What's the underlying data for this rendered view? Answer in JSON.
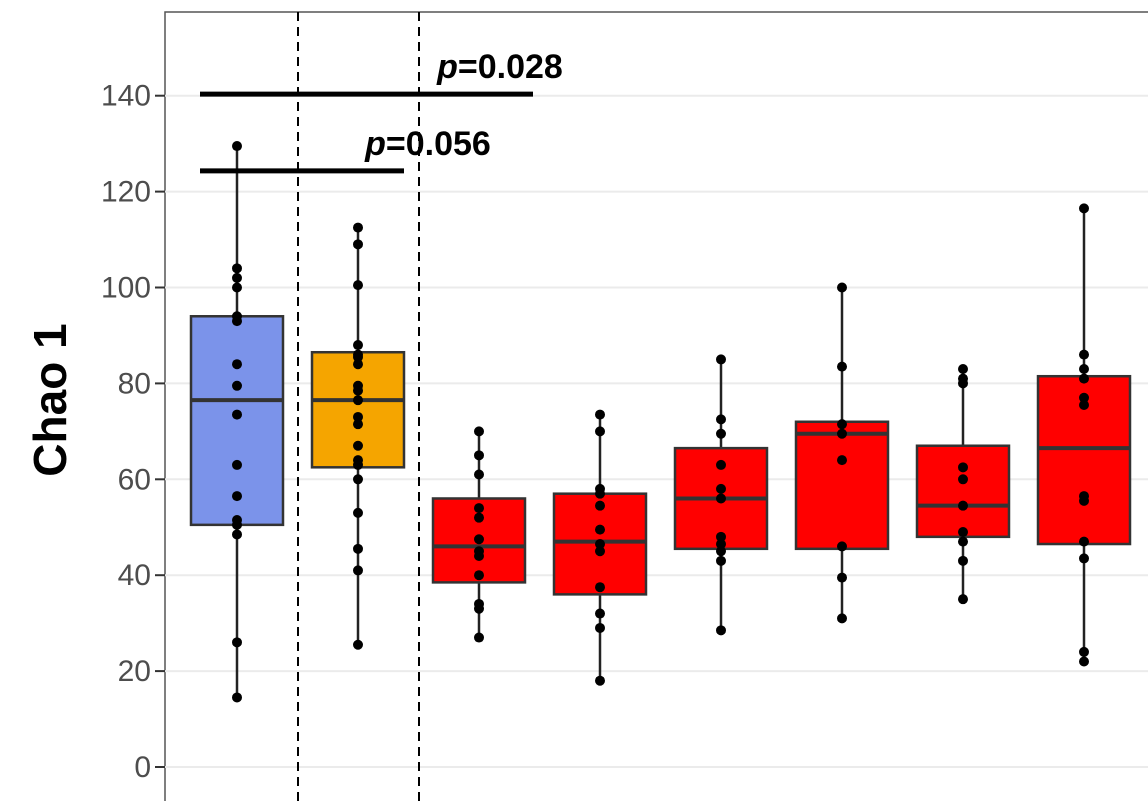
{
  "chart_data": {
    "type": "box",
    "ylabel": "Chao 1",
    "ylim": [
      -5,
      158
    ],
    "yticks": [
      0,
      20,
      40,
      60,
      80,
      100,
      120,
      140
    ],
    "grid": true,
    "group_separators_after": [
      1,
      2
    ],
    "boxes": [
      {
        "color": "#7b93ea",
        "q1": 50.5,
        "median": 76.5,
        "q3": 94,
        "whisker_low": 14.5,
        "whisker_high": 129.5,
        "points": [
          14.5,
          26,
          48.5,
          50.5,
          51.5,
          56.5,
          63,
          73.5,
          79.5,
          84,
          93,
          94,
          100,
          102,
          104,
          129.5
        ]
      },
      {
        "color": "#f5a500",
        "q1": 62.5,
        "median": 76.5,
        "q3": 86.5,
        "whisker_low": 25.5,
        "whisker_high": 112.5,
        "points": [
          25.5,
          41,
          45.5,
          53,
          60,
          63,
          64,
          67,
          71.5,
          73,
          76.5,
          78.5,
          79.5,
          84,
          85.5,
          86,
          88,
          100.5,
          109,
          112.5
        ]
      },
      {
        "color": "#ff0000",
        "q1": 38.5,
        "median": 46,
        "q3": 56,
        "whisker_low": 27,
        "whisker_high": 70,
        "points": [
          27,
          33,
          34,
          40,
          44,
          45,
          47.5,
          52,
          54,
          61,
          65,
          70
        ]
      },
      {
        "color": "#ff0000",
        "q1": 36,
        "median": 47,
        "q3": 57,
        "whisker_low": 18,
        "whisker_high": 73.5,
        "points": [
          18,
          29,
          32,
          37.5,
          45,
          46.5,
          49.5,
          54.5,
          57,
          58,
          70,
          73.5
        ]
      },
      {
        "color": "#ff0000",
        "q1": 45.5,
        "median": 56,
        "q3": 66.5,
        "whisker_low": 28.5,
        "whisker_high": 85,
        "points": [
          28.5,
          43,
          45,
          46.5,
          48,
          56,
          58,
          63,
          69.5,
          72.5,
          85
        ]
      },
      {
        "color": "#ff0000",
        "q1": 45.5,
        "median": 69.5,
        "q3": 72,
        "whisker_low": 31,
        "whisker_high": 100,
        "points": [
          31,
          39.5,
          46,
          64,
          69.5,
          71.5,
          83.5,
          100
        ]
      },
      {
        "color": "#ff0000",
        "q1": 48,
        "median": 54.5,
        "q3": 67,
        "whisker_low": 35,
        "whisker_high": 83,
        "points": [
          35,
          43,
          47,
          49,
          54.5,
          60,
          62.5,
          80,
          81,
          83
        ]
      },
      {
        "color": "#ff0000",
        "q1": 46.5,
        "median": 66.5,
        "q3": 81.5,
        "whisker_low": 22,
        "whisker_high": 116.5,
        "points": [
          22,
          24,
          43.5,
          47,
          55.5,
          56.5,
          75.5,
          77,
          81,
          83,
          86,
          116.5
        ]
      }
    ],
    "annotations": [
      {
        "text_prefix": "p",
        "text_value": "=0.028",
        "from_box": 1,
        "to_box": 3,
        "y": 142
      },
      {
        "text_prefix": "p",
        "text_value": "=0.056",
        "from_box": 1,
        "to_box": 2,
        "y": 126
      }
    ]
  }
}
